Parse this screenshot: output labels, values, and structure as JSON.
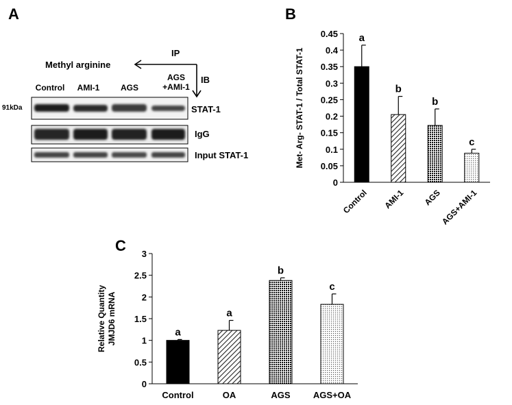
{
  "panels": {
    "a": "A",
    "b": "B",
    "c": "C"
  },
  "blot": {
    "arrow_left_label": "Methyl arginine",
    "ip_label": "IP",
    "ib_label": "IB",
    "lanes": [
      "Control",
      "AMI-1",
      "AGS",
      "AGS\n+AMI-1"
    ],
    "lane_lines": [
      [
        "Control"
      ],
      [
        "AMI-1"
      ],
      [
        "AGS"
      ],
      [
        "AGS",
        "+AMI-1"
      ]
    ],
    "kda_label": "91kDa",
    "rows": [
      "STAT-1",
      "IgG",
      "Input STAT-1"
    ]
  },
  "chart_data": [
    {
      "id": "B",
      "type": "bar",
      "categories": [
        "Control",
        "AMI-1",
        "AGS",
        "AGS+AMI-1"
      ],
      "values": [
        0.35,
        0.205,
        0.172,
        0.088
      ],
      "errors": [
        0.065,
        0.055,
        0.05,
        0.012
      ],
      "letters": [
        "a",
        "b",
        "b",
        "c"
      ],
      "patterns": [
        "solid",
        "diag",
        "dots",
        "fine"
      ],
      "ylabel": "Met- Arg- STAT-1 / Total STAT-1",
      "ylim": [
        0,
        0.45
      ],
      "yticks": [
        "0",
        "0.05",
        "0.1",
        "0.15",
        "0.2",
        "0.25",
        "0.3",
        "0.35",
        "0.4",
        "0.45"
      ],
      "grid": false,
      "legend": "none"
    },
    {
      "id": "C",
      "type": "bar",
      "categories": [
        "Control",
        "OA",
        "AGS",
        "AGS+OA"
      ],
      "values": [
        1.0,
        1.23,
        2.38,
        1.83
      ],
      "errors": [
        0.02,
        0.23,
        0.06,
        0.24
      ],
      "letters": [
        "a",
        "a",
        "b",
        "c"
      ],
      "patterns": [
        "solid",
        "diag",
        "dots",
        "fine"
      ],
      "ylabel_lines": [
        "Relative Quantity",
        "JMJD6 mRNA"
      ],
      "ylim": [
        0,
        3
      ],
      "yticks": [
        "0",
        "0.5",
        "1",
        "1.5",
        "2",
        "2.5",
        "3"
      ],
      "grid": false,
      "legend": "none"
    }
  ]
}
